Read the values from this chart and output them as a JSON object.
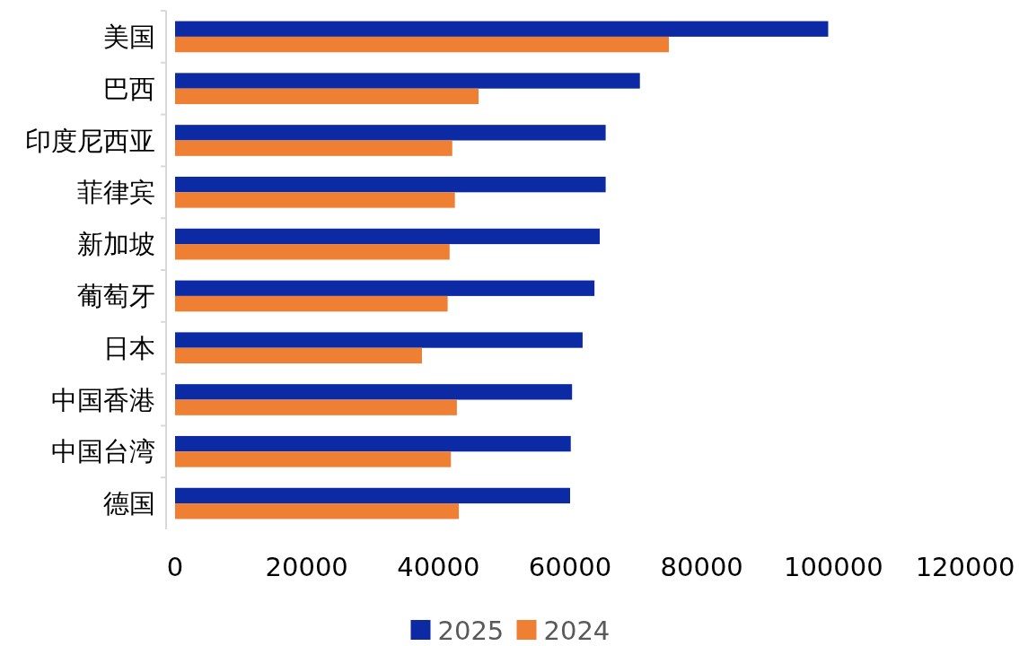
{
  "chart_data": {
    "type": "bar",
    "orientation": "horizontal",
    "categories": [
      "美国",
      "巴西",
      "印度尼西亚",
      "菲律宾",
      "新加坡",
      "葡萄牙",
      "日本",
      "中国香港",
      "中国台湾",
      "德国"
    ],
    "series": [
      {
        "name": "2025",
        "color": "#0c2aa4",
        "values": [
          99200,
          70600,
          65400,
          65400,
          64500,
          63700,
          61900,
          60300,
          60100,
          60000
        ]
      },
      {
        "name": "2024",
        "color": "#ee7f33",
        "values": [
          75000,
          46100,
          42100,
          42500,
          41700,
          41400,
          37500,
          42800,
          41900,
          43100
        ]
      }
    ],
    "xlim": [
      0,
      120000
    ],
    "xticks": [
      0,
      20000,
      40000,
      60000,
      80000,
      100000,
      120000
    ],
    "grid": false,
    "legend": "bottom"
  }
}
